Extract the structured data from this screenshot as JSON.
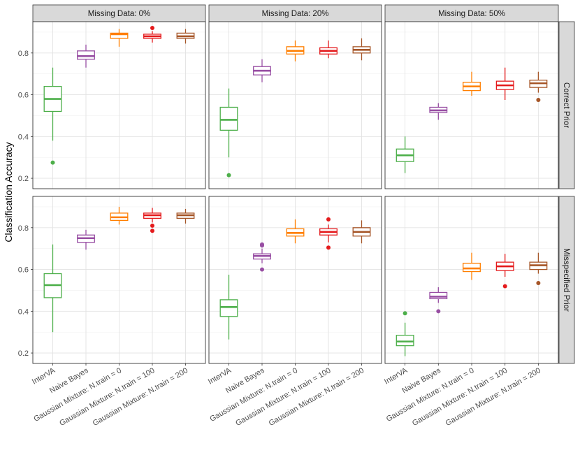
{
  "chart_data": {
    "type": "boxplot",
    "ylabel": "Classification Accuracy",
    "ylim": [
      0.15,
      0.95
    ],
    "yticks": [
      0.2,
      0.4,
      0.6,
      0.8
    ],
    "grid": true,
    "legend": "none",
    "categories": [
      "InterVA",
      "Naive Bayes",
      "Gaussian Mixture: N.train = 0",
      "Gaussian Mixture: N.train = 100",
      "Gaussian Mixture: N.train = 200"
    ],
    "colors": [
      "#4daf4a",
      "#984ea3",
      "#ff7f00",
      "#e41a1c",
      "#a65628"
    ],
    "columns": [
      "Missing Data: 0%",
      "Missing Data: 20%",
      "Missing Data: 50%"
    ],
    "rows": [
      "Correct Prior",
      "Misspecified Prior"
    ],
    "panels": [
      [
        [
          {
            "whislo": 0.38,
            "q1": 0.52,
            "med": 0.58,
            "q3": 0.64,
            "whishi": 0.73,
            "outliers": [
              0.275
            ]
          },
          {
            "whislo": 0.73,
            "q1": 0.77,
            "med": 0.785,
            "q3": 0.81,
            "whishi": 0.84,
            "outliers": []
          },
          {
            "whislo": 0.83,
            "q1": 0.87,
            "med": 0.89,
            "q3": 0.895,
            "whishi": 0.915,
            "outliers": []
          },
          {
            "whislo": 0.85,
            "q1": 0.87,
            "med": 0.88,
            "q3": 0.89,
            "whishi": 0.905,
            "outliers": [
              0.92
            ]
          },
          {
            "whislo": 0.845,
            "q1": 0.87,
            "med": 0.88,
            "q3": 0.895,
            "whishi": 0.915,
            "outliers": []
          }
        ],
        [
          {
            "whislo": 0.3,
            "q1": 0.43,
            "med": 0.48,
            "q3": 0.54,
            "whishi": 0.63,
            "outliers": [
              0.215
            ]
          },
          {
            "whislo": 0.66,
            "q1": 0.695,
            "med": 0.715,
            "q3": 0.735,
            "whishi": 0.77,
            "outliers": []
          },
          {
            "whislo": 0.76,
            "q1": 0.795,
            "med": 0.81,
            "q3": 0.83,
            "whishi": 0.86,
            "outliers": []
          },
          {
            "whislo": 0.775,
            "q1": 0.795,
            "med": 0.81,
            "q3": 0.825,
            "whishi": 0.86,
            "outliers": []
          },
          {
            "whislo": 0.765,
            "q1": 0.8,
            "med": 0.815,
            "q3": 0.83,
            "whishi": 0.87,
            "outliers": []
          }
        ],
        [
          {
            "whislo": 0.225,
            "q1": 0.28,
            "med": 0.31,
            "q3": 0.34,
            "whishi": 0.4,
            "outliers": []
          },
          {
            "whislo": 0.48,
            "q1": 0.515,
            "med": 0.525,
            "q3": 0.54,
            "whishi": 0.56,
            "outliers": []
          },
          {
            "whislo": 0.595,
            "q1": 0.62,
            "med": 0.64,
            "q3": 0.66,
            "whishi": 0.71,
            "outliers": []
          },
          {
            "whislo": 0.575,
            "q1": 0.625,
            "med": 0.645,
            "q3": 0.665,
            "whishi": 0.73,
            "outliers": []
          },
          {
            "whislo": 0.61,
            "q1": 0.635,
            "med": 0.655,
            "q3": 0.67,
            "whishi": 0.71,
            "outliers": [
              0.575
            ]
          }
        ]
      ],
      [
        [
          {
            "whislo": 0.3,
            "q1": 0.465,
            "med": 0.525,
            "q3": 0.58,
            "whishi": 0.72,
            "outliers": []
          },
          {
            "whislo": 0.695,
            "q1": 0.73,
            "med": 0.75,
            "q3": 0.765,
            "whishi": 0.79,
            "outliers": []
          },
          {
            "whislo": 0.815,
            "q1": 0.835,
            "med": 0.85,
            "q3": 0.87,
            "whishi": 0.9,
            "outliers": []
          },
          {
            "whislo": 0.825,
            "q1": 0.845,
            "med": 0.86,
            "q3": 0.87,
            "whishi": 0.895,
            "outliers": [
              0.81,
              0.785
            ]
          },
          {
            "whislo": 0.82,
            "q1": 0.845,
            "med": 0.86,
            "q3": 0.87,
            "whishi": 0.89,
            "outliers": []
          }
        ],
        [
          {
            "whislo": 0.265,
            "q1": 0.375,
            "med": 0.42,
            "q3": 0.455,
            "whishi": 0.575,
            "outliers": []
          },
          {
            "whislo": 0.63,
            "q1": 0.65,
            "med": 0.665,
            "q3": 0.675,
            "whishi": 0.7,
            "outliers": [
              0.72,
              0.715,
              0.6
            ]
          },
          {
            "whislo": 0.725,
            "q1": 0.76,
            "med": 0.775,
            "q3": 0.795,
            "whishi": 0.84,
            "outliers": []
          },
          {
            "whislo": 0.73,
            "q1": 0.765,
            "med": 0.78,
            "q3": 0.795,
            "whishi": 0.815,
            "outliers": [
              0.84,
              0.705
            ]
          },
          {
            "whislo": 0.725,
            "q1": 0.76,
            "med": 0.78,
            "q3": 0.8,
            "whishi": 0.835,
            "outliers": []
          }
        ],
        [
          {
            "whislo": 0.185,
            "q1": 0.235,
            "med": 0.255,
            "q3": 0.285,
            "whishi": 0.345,
            "outliers": [
              0.39
            ]
          },
          {
            "whislo": 0.44,
            "q1": 0.46,
            "med": 0.47,
            "q3": 0.49,
            "whishi": 0.515,
            "outliers": [
              0.4
            ]
          },
          {
            "whislo": 0.55,
            "q1": 0.59,
            "med": 0.605,
            "q3": 0.63,
            "whishi": 0.68,
            "outliers": []
          },
          {
            "whislo": 0.565,
            "q1": 0.595,
            "med": 0.615,
            "q3": 0.635,
            "whishi": 0.675,
            "outliers": [
              0.52
            ]
          },
          {
            "whislo": 0.58,
            "q1": 0.6,
            "med": 0.62,
            "q3": 0.635,
            "whishi": 0.68,
            "outliers": [
              0.535
            ]
          }
        ]
      ]
    ]
  }
}
